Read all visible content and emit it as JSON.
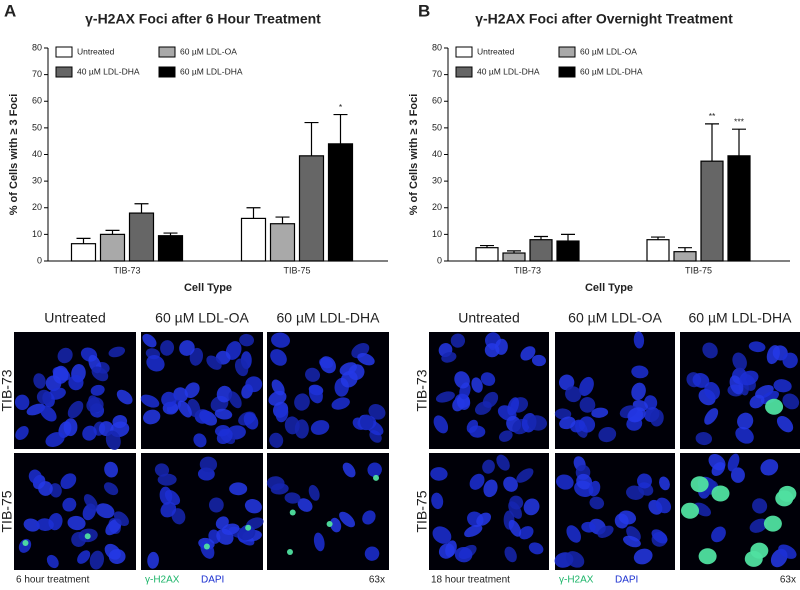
{
  "chart_data": [
    {
      "type": "bar",
      "title": "γ-H2AX Foci after 6 Hour Treatment",
      "y_label": "% of Cells with ≥ 3 Foci",
      "x_label": "Cell Type",
      "categories": [
        "TIB-73",
        "TIB-75"
      ],
      "series": [
        {
          "name": "Untreated",
          "color": "#ffffff",
          "values": [
            6.5,
            16
          ],
          "errors": [
            2,
            4
          ]
        },
        {
          "name": "60 µM LDL-OA",
          "color": "#a9a9a9",
          "values": [
            10,
            14
          ],
          "errors": [
            1.5,
            2.5
          ]
        },
        {
          "name": "40 µM LDL-DHA",
          "color": "#666666",
          "values": [
            18,
            39.5
          ],
          "errors": [
            3.5,
            12.5
          ]
        },
        {
          "name": "60 µM LDL-DHA",
          "color": "#000000",
          "values": [
            9.5,
            44
          ],
          "errors": [
            1,
            11
          ],
          "significance": [
            null,
            "*"
          ]
        }
      ],
      "ylim": [
        0,
        80
      ],
      "yticks": [
        0,
        10,
        20,
        30,
        40,
        50,
        60,
        70,
        80
      ]
    },
    {
      "type": "bar",
      "title": "γ-H2AX Foci after Overnight Treatment",
      "y_label": "% of Cells with ≥ 3 Foci",
      "x_label": "Cell Type",
      "categories": [
        "TIB-73",
        "TIB-75"
      ],
      "series": [
        {
          "name": "Untreated",
          "color": "#ffffff",
          "values": [
            5,
            8
          ],
          "errors": [
            0.8,
            1
          ]
        },
        {
          "name": "60 µM LDL-OA",
          "color": "#a9a9a9",
          "values": [
            3,
            3.5
          ],
          "errors": [
            0.8,
            1.5
          ]
        },
        {
          "name": "40 µM LDL-DHA",
          "color": "#666666",
          "values": [
            8,
            37.5
          ],
          "errors": [
            1.2,
            14
          ],
          "significance": [
            null,
            "**"
          ]
        },
        {
          "name": "60 µM LDL-DHA",
          "color": "#000000",
          "values": [
            7.5,
            39.5
          ],
          "errors": [
            2.5,
            10
          ],
          "significance": [
            null,
            "***"
          ]
        }
      ],
      "ylim": [
        0,
        80
      ],
      "yticks": [
        0,
        10,
        20,
        30,
        40,
        50,
        60,
        70,
        80
      ]
    }
  ],
  "panels": [
    {
      "label": "A",
      "columns": [
        "Untreated",
        "60 µM LDL-OA",
        "60 µM LDL-DHA"
      ],
      "rows": [
        "TIB-73",
        "TIB-75"
      ],
      "footer": {
        "treatment": "6 hour treatment",
        "stain_foci": "γ-H2AX",
        "stain_nuclei": "DAPI",
        "magnification": "63x"
      }
    },
    {
      "label": "B",
      "columns": [
        "Untreated",
        "60 µM LDL-OA",
        "60 µM LDL-DHA"
      ],
      "rows": [
        "TIB-73",
        "TIB-75"
      ],
      "footer": {
        "treatment": "18 hour treatment",
        "stain_foci": "γ-H2AX",
        "stain_nuclei": "DAPI",
        "magnification": "63x"
      }
    }
  ]
}
